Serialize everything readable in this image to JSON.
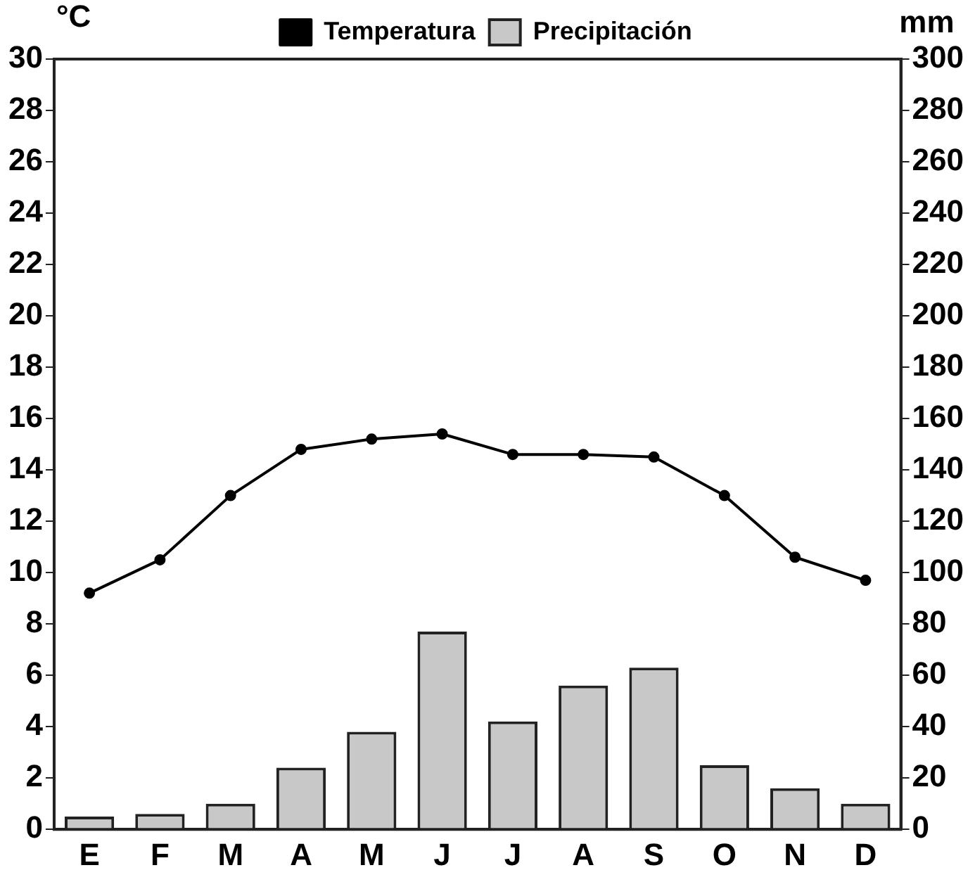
{
  "chart_data": {
    "type": "bar",
    "ylabel": "°C",
    "y2label": "mm",
    "categories": [
      "E",
      "F",
      "M",
      "A",
      "M",
      "J",
      "J",
      "A",
      "S",
      "O",
      "N",
      "D"
    ],
    "series": [
      {
        "name": "Temperatura",
        "type": "line",
        "axis": "y",
        "color": "#000000",
        "marker": "circle",
        "values": [
          9.2,
          10.5,
          13.0,
          14.8,
          15.2,
          15.4,
          14.6,
          14.6,
          14.5,
          13.0,
          10.6,
          9.7
        ]
      },
      {
        "name": "Precipitación",
        "axis": "y2",
        "color": "#c8c8c8",
        "values": [
          5,
          6,
          10,
          24,
          38,
          77,
          42,
          56,
          63,
          25,
          16,
          10
        ]
      }
    ],
    "ylim": [
      0,
      30
    ],
    "yticks": [
      0,
      2,
      4,
      6,
      8,
      10,
      12,
      14,
      16,
      18,
      20,
      22,
      24,
      26,
      28,
      30
    ],
    "y2lim": [
      0,
      300
    ],
    "y2ticks": [
      0,
      20,
      40,
      60,
      80,
      100,
      120,
      140,
      160,
      180,
      200,
      220,
      240,
      260,
      280,
      300
    ],
    "grid": false,
    "legend": "top"
  }
}
